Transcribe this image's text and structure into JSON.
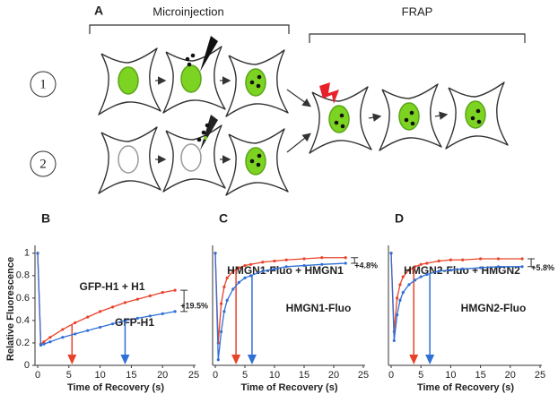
{
  "diagram": {
    "label": "A",
    "groups": [
      "Microinjection",
      "FRAP"
    ],
    "rows": [
      "1",
      "2"
    ]
  },
  "chart_data": [
    {
      "type": "line",
      "panel": "B",
      "ylabel": "Relative Fluorescence",
      "xlabel": "Time of Recovery (s)",
      "xlim": [
        0,
        25
      ],
      "xticks": [
        0,
        5,
        10,
        15,
        20,
        25
      ],
      "ylim": [
        0,
        1.07
      ],
      "yticks": [
        0,
        0.2,
        0.4,
        0.6,
        0.8,
        1
      ],
      "x": [
        0,
        0.5,
        1,
        2,
        4,
        6,
        8,
        10,
        12,
        14,
        16,
        18,
        20,
        22
      ],
      "series": [
        {
          "name": "GFP-H1 + H1",
          "color": "#e8432a",
          "values": [
            1,
            0.19,
            0.21,
            0.25,
            0.32,
            0.38,
            0.43,
            0.48,
            0.52,
            0.56,
            0.59,
            0.62,
            0.65,
            0.67
          ]
        },
        {
          "name": "GFP-H1",
          "color": "#2f6fd6",
          "values": [
            1,
            0.18,
            0.19,
            0.21,
            0.25,
            0.28,
            0.31,
            0.34,
            0.37,
            0.4,
            0.42,
            0.44,
            0.46,
            0.48
          ]
        }
      ],
      "annotation": "+19.5%",
      "markers": [
        {
          "x": 5.5,
          "color": "#e8432a"
        },
        {
          "x": 14,
          "color": "#2f6fd6"
        }
      ]
    },
    {
      "type": "line",
      "panel": "C",
      "xlabel": "Time of Recovery (s)",
      "xlim": [
        0,
        25
      ],
      "xticks": [
        0,
        5,
        10,
        15,
        20,
        25
      ],
      "ylim": [
        0,
        1.07
      ],
      "x": [
        0,
        0.5,
        1,
        1.5,
        2,
        3,
        4,
        5,
        6,
        8,
        10,
        12,
        15,
        18,
        22
      ],
      "series": [
        {
          "name": "HMGN1-Fluo + HMGN1",
          "color": "#e8432a",
          "values": [
            1,
            0.2,
            0.55,
            0.7,
            0.78,
            0.84,
            0.87,
            0.89,
            0.9,
            0.92,
            0.93,
            0.94,
            0.95,
            0.96,
            0.96
          ]
        },
        {
          "name": "HMGN1-Fluo",
          "color": "#2f6fd6",
          "values": [
            1,
            0.05,
            0.3,
            0.48,
            0.58,
            0.68,
            0.74,
            0.78,
            0.8,
            0.84,
            0.86,
            0.88,
            0.89,
            0.9,
            0.91
          ]
        }
      ],
      "annotation": "+4.8%",
      "markers": [
        {
          "x": 3.5,
          "color": "#e8432a"
        },
        {
          "x": 6.2,
          "color": "#2f6fd6"
        }
      ]
    },
    {
      "type": "line",
      "panel": "D",
      "xlabel": "Time of Recovery (s)",
      "xlim": [
        0,
        25
      ],
      "xticks": [
        0,
        5,
        10,
        15,
        20,
        25
      ],
      "ylim": [
        0,
        1.07
      ],
      "x": [
        0,
        0.5,
        1,
        1.5,
        2,
        3,
        4,
        5,
        6,
        8,
        10,
        12,
        15,
        18,
        22
      ],
      "series": [
        {
          "name": "HMGN2-Fluo + HMGN2",
          "color": "#e8432a",
          "values": [
            1,
            0.3,
            0.6,
            0.72,
            0.79,
            0.85,
            0.88,
            0.9,
            0.91,
            0.93,
            0.94,
            0.94,
            0.95,
            0.95,
            0.95
          ]
        },
        {
          "name": "HMGN2-Fluo",
          "color": "#2f6fd6",
          "values": [
            1,
            0.22,
            0.45,
            0.58,
            0.65,
            0.72,
            0.76,
            0.79,
            0.81,
            0.84,
            0.85,
            0.86,
            0.87,
            0.88,
            0.88
          ]
        }
      ],
      "annotation": "+5.8%",
      "markers": [
        {
          "x": 3.8,
          "color": "#e8432a"
        },
        {
          "x": 6.5,
          "color": "#2f6fd6"
        }
      ]
    }
  ]
}
